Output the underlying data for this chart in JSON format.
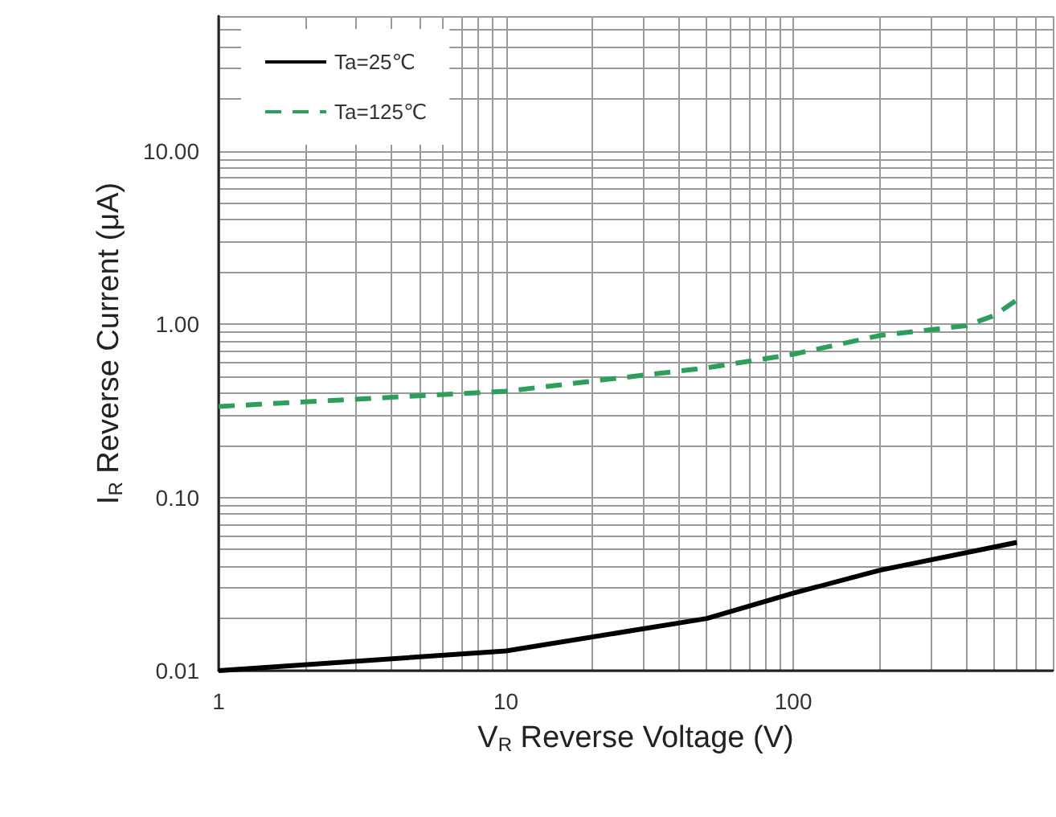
{
  "chart_data": {
    "type": "line",
    "xlabel": "V$_{R}$ Reverse Voltage (V)",
    "ylabel": "I$_{R}$ Reverse Current (μA)",
    "log": "xy",
    "grid": true,
    "legend": "top left",
    "marker": "none",
    "xlim": [
      1,
      800
    ],
    "xticks": [
      1,
      10,
      100
    ],
    "ylim": [
      0.01,
      60
    ],
    "yticks": [
      {
        "value": 0.01,
        "label": "0.01"
      },
      {
        "value": 0.1,
        "label": "0.10"
      },
      {
        "value": 1,
        "label": "1.00"
      },
      {
        "value": 10,
        "label": "10.00"
      }
    ],
    "series": [
      {
        "name": "Ta=25℃",
        "color": "#000000",
        "line_style": "solid",
        "x": [
          1,
          10,
          50,
          100,
          200,
          600
        ],
        "values": [
          0.01,
          0.013,
          0.02,
          0.028,
          0.038,
          0.055
        ]
      },
      {
        "name": "Ta=125℃",
        "color": "#2e9e5b",
        "line_style": "dashed",
        "x": [
          1,
          10,
          50,
          100,
          200,
          400,
          500,
          600
        ],
        "values": [
          0.335,
          0.41,
          0.56,
          0.67,
          0.86,
          0.98,
          1.12,
          1.38
        ]
      }
    ]
  }
}
